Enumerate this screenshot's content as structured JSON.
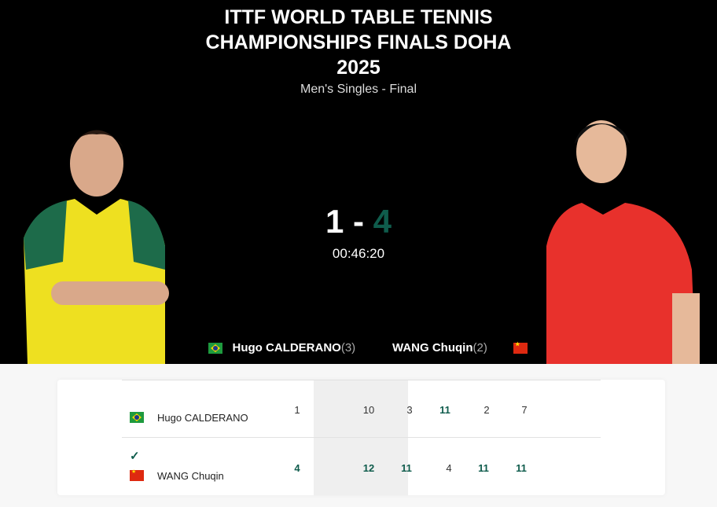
{
  "event": {
    "title_lines": [
      "ITTF WORLD TABLE TENNIS",
      "CHAMPIONSHIPS FINALS DOHA",
      "2025"
    ],
    "subtitle": "Men's Singles - Final"
  },
  "match": {
    "score_home": "1",
    "score_sep": "-",
    "score_away": "4",
    "duration": "00:46:20"
  },
  "players": [
    {
      "name": "Hugo CALDERANO",
      "seed": "(3)",
      "flag": "brazil-flag",
      "games": "1",
      "sets": [
        "10",
        "3",
        "11",
        "2",
        "7"
      ],
      "set_wins": [
        false,
        false,
        true,
        false,
        false
      ],
      "winner": false
    },
    {
      "name": "WANG Chuqin",
      "seed": "(2)",
      "flag": "china-flag",
      "games": "4",
      "sets": [
        "12",
        "11",
        "4",
        "11",
        "11"
      ],
      "set_wins": [
        true,
        true,
        false,
        true,
        true
      ],
      "winner": true
    }
  ],
  "colors": {
    "winner": "#0f5c4c",
    "hero_bg": "#000000",
    "brazil_shirt": "#f2e200",
    "china_shirt": "#e8312c"
  }
}
